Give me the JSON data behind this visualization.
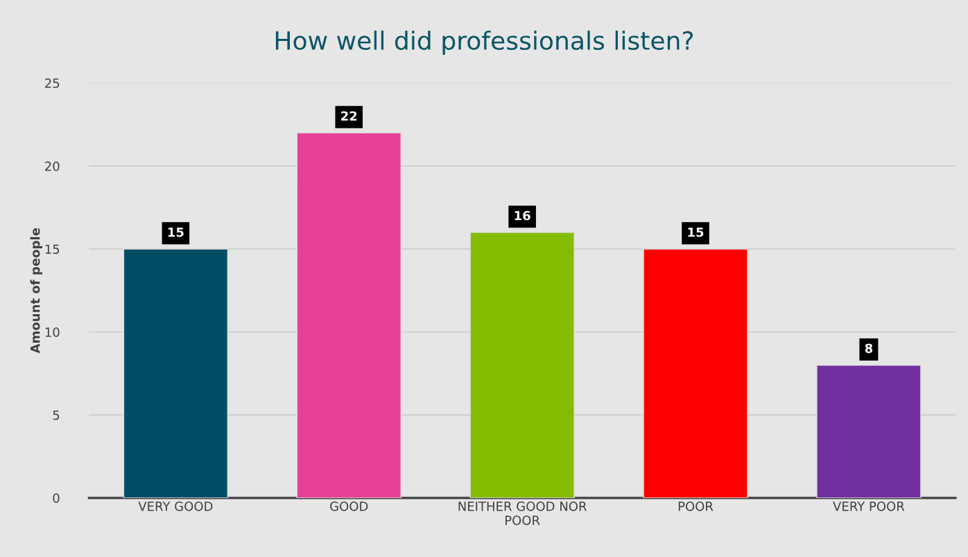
{
  "chart_data": {
    "type": "bar",
    "title": "How well did professionals listen?",
    "ylabel": "Amount of people",
    "categories": [
      "VERY GOOD",
      "GOOD",
      "NEITHER GOOD NOR\nPOOR",
      "POOR",
      "VERY POOR"
    ],
    "values": [
      15,
      22,
      16,
      15,
      8
    ],
    "colors": [
      "#004d66",
      "#e64097",
      "#84bd00",
      "#ff0000",
      "#7030a0"
    ],
    "ylim": [
      0,
      25
    ],
    "yticks": [
      0,
      5,
      10,
      15,
      20,
      25
    ],
    "grid": "y",
    "data_labels": true
  }
}
